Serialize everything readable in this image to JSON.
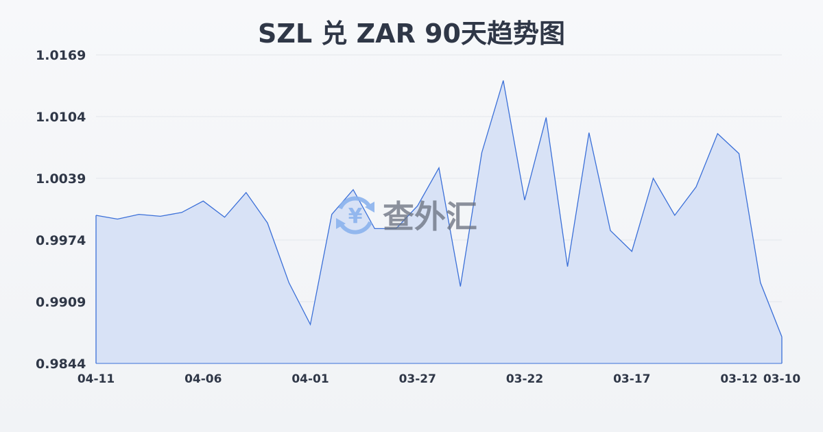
{
  "chart_data": {
    "type": "area",
    "title": "SZL 兑 ZAR 90天趋势图",
    "xlabel": "",
    "ylabel": "",
    "ylim": [
      0.9844,
      1.0169
    ],
    "y_ticks": [
      "1.0169",
      "1.0104",
      "1.0039",
      "0.9974",
      "0.9909",
      "0.9844"
    ],
    "x_ticks": [
      "04-11",
      "04-06",
      "04-01",
      "03-27",
      "03-22",
      "03-17",
      "03-12",
      "03-10"
    ],
    "grid": true,
    "colors": {
      "line": "#3a6fd8",
      "fill": "#d6e0f5"
    },
    "x": [
      "04-11",
      "04-10",
      "04-09",
      "04-08",
      "04-07",
      "04-06",
      "04-05",
      "04-04",
      "04-03",
      "04-02",
      "04-01",
      "03-31",
      "03-30",
      "03-29",
      "03-28",
      "03-27",
      "03-26",
      "03-25",
      "03-24",
      "03-23",
      "03-22",
      "03-21",
      "03-20",
      "03-19",
      "03-18",
      "03-17",
      "03-16",
      "03-15",
      "03-14",
      "03-13",
      "03-12",
      "03-11",
      "03-10"
    ],
    "values": [
      1.0,
      0.9996,
      1.0001,
      0.9999,
      1.0003,
      1.0015,
      0.9998,
      1.0024,
      0.9992,
      0.9929,
      0.9885,
      1.0001,
      1.0027,
      0.9986,
      0.9986,
      1.001,
      1.005,
      0.9925,
      1.0066,
      1.0142,
      1.0016,
      1.0103,
      0.9946,
      1.0087,
      0.9984,
      0.9962,
      1.0039,
      1.0,
      1.003,
      1.0086,
      1.0065,
      0.9929,
      0.9872
    ]
  },
  "watermark": {
    "text": "查外汇",
    "icon": "yen-exchange-icon"
  }
}
